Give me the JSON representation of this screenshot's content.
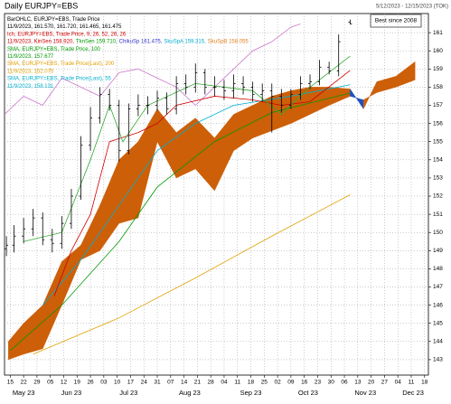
{
  "chart_data": {
    "type": "financial",
    "title": "Daily EURJPY=EBS",
    "subtitle": "5/12/2023 - 12/15/2023 (TOK)",
    "annotation": "Best since 2008",
    "grid": true,
    "xlim": [
      0,
      222
    ],
    "ylim": [
      142.15,
      162.05
    ],
    "yticks": [
      143,
      144,
      145,
      146,
      147,
      148,
      149,
      150,
      151,
      152,
      153,
      154,
      155,
      156,
      157,
      158,
      159,
      160,
      161
    ],
    "xticks": [
      {
        "value": 3,
        "label": "15"
      },
      {
        "value": 10,
        "label": "22"
      },
      {
        "value": 17,
        "label": "29"
      },
      {
        "value": 24,
        "label": "05"
      },
      {
        "value": 31,
        "label": "12"
      },
      {
        "value": 38,
        "label": "19"
      },
      {
        "value": 45,
        "label": "26"
      },
      {
        "value": 52,
        "label": "03"
      },
      {
        "value": 59,
        "label": "10"
      },
      {
        "value": 66,
        "label": "17"
      },
      {
        "value": 73,
        "label": "24"
      },
      {
        "value": 80,
        "label": "31"
      },
      {
        "value": 87,
        "label": "07"
      },
      {
        "value": 94,
        "label": "14"
      },
      {
        "value": 101,
        "label": "21"
      },
      {
        "value": 108,
        "label": "28"
      },
      {
        "value": 115,
        "label": "04"
      },
      {
        "value": 122,
        "label": "11"
      },
      {
        "value": 129,
        "label": "18"
      },
      {
        "value": 136,
        "label": "25"
      },
      {
        "value": 143,
        "label": "02"
      },
      {
        "value": 150,
        "label": "09"
      },
      {
        "value": 157,
        "label": "16"
      },
      {
        "value": 164,
        "label": "23"
      },
      {
        "value": 171,
        "label": "30"
      },
      {
        "value": 178,
        "label": "06"
      },
      {
        "value": 185,
        "label": "13"
      },
      {
        "value": 192,
        "label": "20"
      },
      {
        "value": 199,
        "label": "27"
      },
      {
        "value": 206,
        "label": "04"
      },
      {
        "value": 213,
        "label": "11"
      },
      {
        "value": 220,
        "label": "18"
      }
    ],
    "month_ticks": [
      {
        "value": 10,
        "label": "May 23"
      },
      {
        "value": 35,
        "label": "Jun 23"
      },
      {
        "value": 65,
        "label": "Jul 23"
      },
      {
        "value": 97,
        "label": "Aug 23"
      },
      {
        "value": 129,
        "label": "Sep 23"
      },
      {
        "value": 159,
        "label": "Oct 23"
      },
      {
        "value": 189,
        "label": "Nov 23"
      },
      {
        "value": 214,
        "label": "Dec 23"
      }
    ],
    "legend_lines": [
      [
        {
          "text": "BarOHLC, EURJPY=EBS, Trade Price",
          "color": "#000000"
        }
      ],
      [
        {
          "text": "11/9/2023, 161.570, 161.720, 161.465, 161.475",
          "color": "#000000"
        }
      ],
      [
        {
          "text": "Ich, EURJPY=EBS, Trade Price, 9, 26, 52, 26, 26",
          "color": "#d00000"
        }
      ],
      [
        {
          "text": "11/9/2023, KinSen 158.920,",
          "color": "#d00000"
        },
        {
          "text": "TknSen 159.710,",
          "color": "#009900"
        },
        {
          "text": "ChikuSp 161.475,",
          "color": "#3333cc"
        },
        {
          "text": "SkuSpA 159.315,",
          "color": "#00aacc"
        },
        {
          "text": "SkuSpB 158.055",
          "color": "#e08020"
        }
      ],
      [
        {
          "text": "SMA, EURJPY=EBS, Trade Price, 100",
          "color": "#009900"
        }
      ],
      [
        {
          "text": "11/9/2023, 157.677",
          "color": "#009900"
        }
      ],
      [
        {
          "text": "SMA, EURJPY=EBS, Trade Price(Last), 200",
          "color": "#e0a000"
        }
      ],
      [
        {
          "text": "11/9/2023, 152.075",
          "color": "#e0a000"
        }
      ],
      [
        {
          "text": "SMA, EURJPY=EBS, Trade Price(Last), 55",
          "color": "#00b0d0"
        }
      ],
      [
        {
          "text": "11/9/2023, 158.131",
          "color": "#00b0d0"
        }
      ]
    ],
    "cloud": {
      "x": [
        2,
        10,
        20,
        30,
        40,
        50,
        60,
        70,
        80,
        90,
        100,
        110,
        120,
        130,
        140,
        150,
        160,
        170,
        181,
        188,
        195,
        205,
        215
      ],
      "span_a": [
        144.0,
        145.0,
        146.0,
        148.4,
        149.3,
        151.5,
        154.0,
        155.0,
        156.8,
        155.5,
        156.3,
        155.2,
        156.5,
        157.0,
        157.5,
        157.8,
        158.0,
        158.0,
        157.9,
        156.8,
        158.3,
        158.6,
        159.4
      ],
      "span_b": [
        143.0,
        143.3,
        143.6,
        146.0,
        148.5,
        149.0,
        150.5,
        150.8,
        155.0,
        153.0,
        153.5,
        152.3,
        154.5,
        155.2,
        155.6,
        156.0,
        156.5,
        157.0,
        157.5,
        157.3,
        157.7,
        158.0,
        158.4
      ],
      "up_color": "#cc5f08",
      "down_color": "#1f50c0"
    },
    "series": [
      {
        "color": "#e0a000",
        "x": [
          15,
          60,
          100,
          140,
          181
        ],
        "values": [
          143.3,
          145.3,
          147.5,
          149.8,
          152.075
        ]
      },
      {
        "color": "#00b0d0",
        "x": [
          20,
          40,
          60,
          80,
          100,
          120,
          150,
          181
        ],
        "values": [
          146.0,
          148.5,
          151.5,
          154.5,
          156.0,
          157.0,
          157.5,
          158.131
        ]
      },
      {
        "color": "#009900",
        "x": [
          3,
          30,
          60,
          80,
          110,
          140,
          181
        ],
        "values": [
          143.5,
          146.0,
          149.5,
          152.5,
          155.0,
          156.6,
          157.677
        ]
      },
      {
        "color": "#cc77cc",
        "x": [
          0,
          10,
          20,
          30,
          40,
          50,
          60,
          70,
          80,
          90,
          100,
          110,
          120,
          130,
          140,
          150,
          155
        ],
        "values": [
          156.5,
          157.5,
          157.0,
          158.5,
          158.0,
          157.5,
          158.8,
          159.0,
          158.5,
          158.0,
          157.0,
          158.0,
          159.0,
          160.0,
          160.5,
          161.3,
          161.475
        ]
      },
      {
        "color": "#d00000",
        "x": [
          26,
          35,
          45,
          55,
          70,
          80,
          90,
          110,
          130,
          145,
          160,
          181
        ],
        "values": [
          146.5,
          149.0,
          151.0,
          155.0,
          155.5,
          156.0,
          157.0,
          157.5,
          157.3,
          157.0,
          157.2,
          158.92
        ]
      },
      {
        "color": "#33aa33",
        "x": [
          10,
          30,
          45,
          55,
          62,
          75,
          100,
          130,
          145,
          160,
          181
        ],
        "values": [
          149.5,
          150.0,
          154.0,
          157.0,
          155.0,
          157.0,
          158.2,
          157.8,
          156.5,
          158.0,
          159.71
        ]
      }
    ],
    "ohlc": {
      "color": "#000000",
      "x": [
        1,
        5,
        10,
        15,
        20,
        25,
        30,
        35,
        40,
        45,
        50,
        55,
        60,
        65,
        70,
        75,
        80,
        85,
        90,
        95,
        100,
        105,
        110,
        115,
        120,
        125,
        130,
        135,
        140,
        145,
        150,
        155,
        160,
        165,
        170,
        175,
        181
      ],
      "open": [
        149.1,
        149.3,
        149.8,
        150.2,
        150.8,
        149.6,
        149.4,
        150.5,
        152.0,
        154.8,
        156.3,
        157.6,
        157.0,
        154.5,
        156.8,
        157.0,
        157.0,
        157.4,
        156.8,
        158.2,
        158.0,
        158.8,
        158.0,
        158.0,
        157.8,
        158.2,
        158.0,
        157.6,
        157.8,
        157.5,
        157.0,
        157.6,
        158.2,
        158.3,
        159.1,
        158.9,
        161.57
      ],
      "high": [
        149.8,
        150.4,
        150.8,
        151.3,
        151.1,
        150.2,
        150.9,
        152.4,
        155.3,
        156.9,
        158.0,
        157.9,
        157.3,
        157.1,
        157.6,
        157.5,
        157.8,
        157.7,
        158.6,
        158.7,
        159.3,
        159.0,
        158.6,
        158.4,
        158.7,
        158.6,
        158.3,
        158.2,
        158.2,
        157.9,
        157.9,
        158.6,
        158.7,
        159.5,
        159.4,
        160.9,
        161.72
      ],
      "low": [
        148.7,
        148.9,
        149.4,
        149.8,
        149.3,
        148.9,
        149.1,
        150.2,
        151.8,
        154.5,
        156.0,
        156.7,
        153.9,
        154.3,
        156.4,
        156.5,
        156.7,
        156.5,
        156.5,
        157.6,
        157.7,
        157.6,
        157.5,
        157.3,
        157.4,
        157.6,
        157.2,
        157.2,
        155.5,
        156.6,
        156.8,
        157.3,
        157.9,
        158.1,
        158.7,
        158.6,
        161.465
      ],
      "close": [
        149.3,
        149.8,
        150.2,
        150.8,
        149.6,
        149.4,
        150.5,
        152.0,
        154.8,
        156.3,
        157.6,
        157.0,
        154.5,
        156.8,
        157.0,
        157.0,
        157.4,
        156.8,
        158.2,
        158.0,
        158.8,
        158.0,
        158.0,
        157.8,
        158.2,
        158.0,
        157.6,
        157.8,
        157.5,
        157.0,
        157.6,
        158.2,
        158.3,
        159.1,
        158.9,
        160.5,
        161.475
      ]
    }
  }
}
